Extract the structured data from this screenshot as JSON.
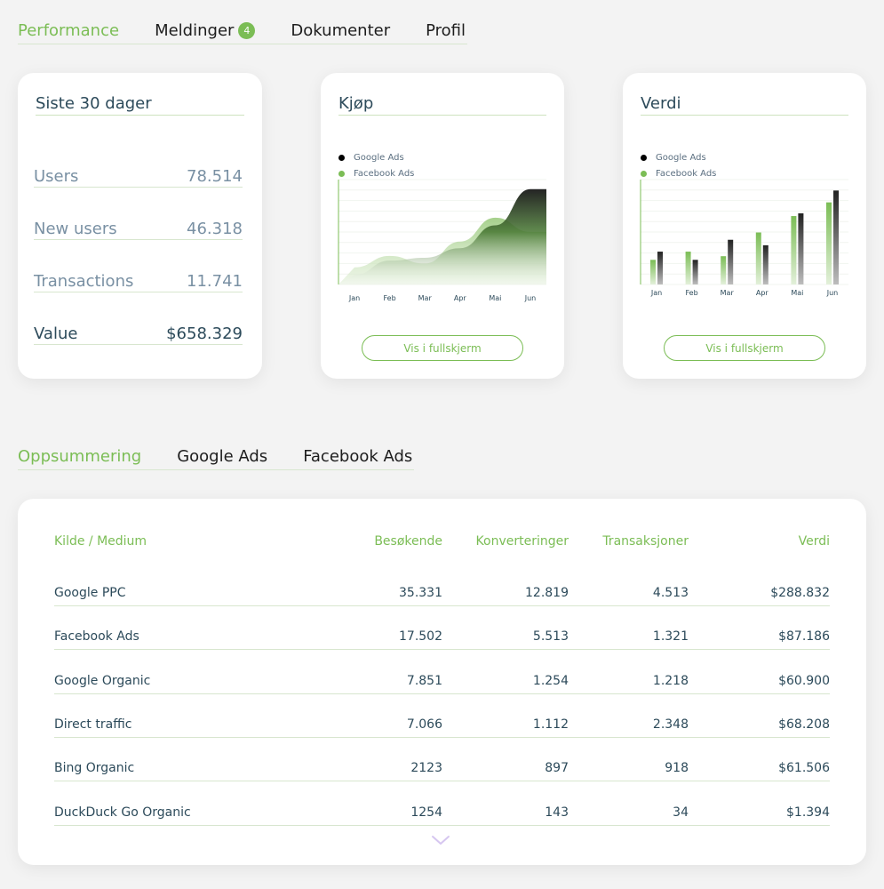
{
  "top_tabs": [
    {
      "label": "Performance",
      "active": true
    },
    {
      "label": "Meldinger",
      "badge": "4"
    },
    {
      "label": "Dokumenter"
    },
    {
      "label": "Profil"
    }
  ],
  "stats_card": {
    "title": "Siste 30 dager",
    "rows": [
      {
        "label": "Users",
        "value": "78.514"
      },
      {
        "label": "New users",
        "value": "46.318"
      },
      {
        "label": "Transactions",
        "value": "11.741"
      },
      {
        "label": "Value",
        "value": "$658.329"
      }
    ]
  },
  "kjop_card": {
    "title": "Kjøp",
    "legend": [
      "Google Ads",
      "Facebook Ads"
    ],
    "button_label": "Vis i fullskjerm"
  },
  "verdi_card": {
    "title": "Verdi",
    "legend": [
      "Google Ads",
      "Facebook Ads"
    ],
    "button_label": "Vis i fullskjerm"
  },
  "colors": {
    "accent": "#7bbd55",
    "dark": "#1a1a1a",
    "text": "#2c4a5a"
  },
  "chart_data": [
    {
      "type": "area",
      "title": "Kjøp",
      "categories": [
        "Jan",
        "Feb",
        "Mar",
        "Apr",
        "Mai",
        "Jun"
      ],
      "series": [
        {
          "name": "Google Ads",
          "values": [
            10,
            25,
            28,
            38,
            62,
            100
          ]
        },
        {
          "name": "Facebook Ads",
          "values": [
            18,
            30,
            22,
            45,
            70,
            55
          ]
        }
      ],
      "ylim": [
        0,
        110
      ]
    },
    {
      "type": "bar",
      "title": "Verdi",
      "categories": [
        "Jan",
        "Feb",
        "Mar",
        "Apr",
        "Mai",
        "Jun"
      ],
      "series": [
        {
          "name": "Facebook Ads",
          "values": [
            27,
            36,
            31,
            57,
            75,
            90
          ]
        },
        {
          "name": "Google Ads",
          "values": [
            36,
            27,
            49,
            43,
            78,
            103
          ]
        }
      ],
      "ylim": [
        0,
        115
      ]
    }
  ],
  "sub_tabs": [
    {
      "label": "Oppsummering",
      "active": true
    },
    {
      "label": "Google Ads"
    },
    {
      "label": "Facebook Ads"
    }
  ],
  "table": {
    "headers": [
      "Kilde / Medium",
      "Besøkende",
      "Konverteringer",
      "Transaksjoner",
      "Verdi"
    ],
    "rows": [
      [
        "Google PPC",
        "35.331",
        "12.819",
        "4.513",
        "$288.832"
      ],
      [
        "Facebook Ads",
        "17.502",
        "5.513",
        "1.321",
        "$87.186"
      ],
      [
        "Google Organic",
        "7.851",
        "1.254",
        "1.218",
        "$60.900"
      ],
      [
        "Direct traffic",
        "7.066",
        "1.112",
        "2.348",
        "$68.208"
      ],
      [
        "Bing Organic",
        "2123",
        "897",
        "918",
        "$61.506"
      ],
      [
        "DuckDuck Go Organic",
        "1254",
        "143",
        "34",
        "$1.394"
      ]
    ]
  }
}
